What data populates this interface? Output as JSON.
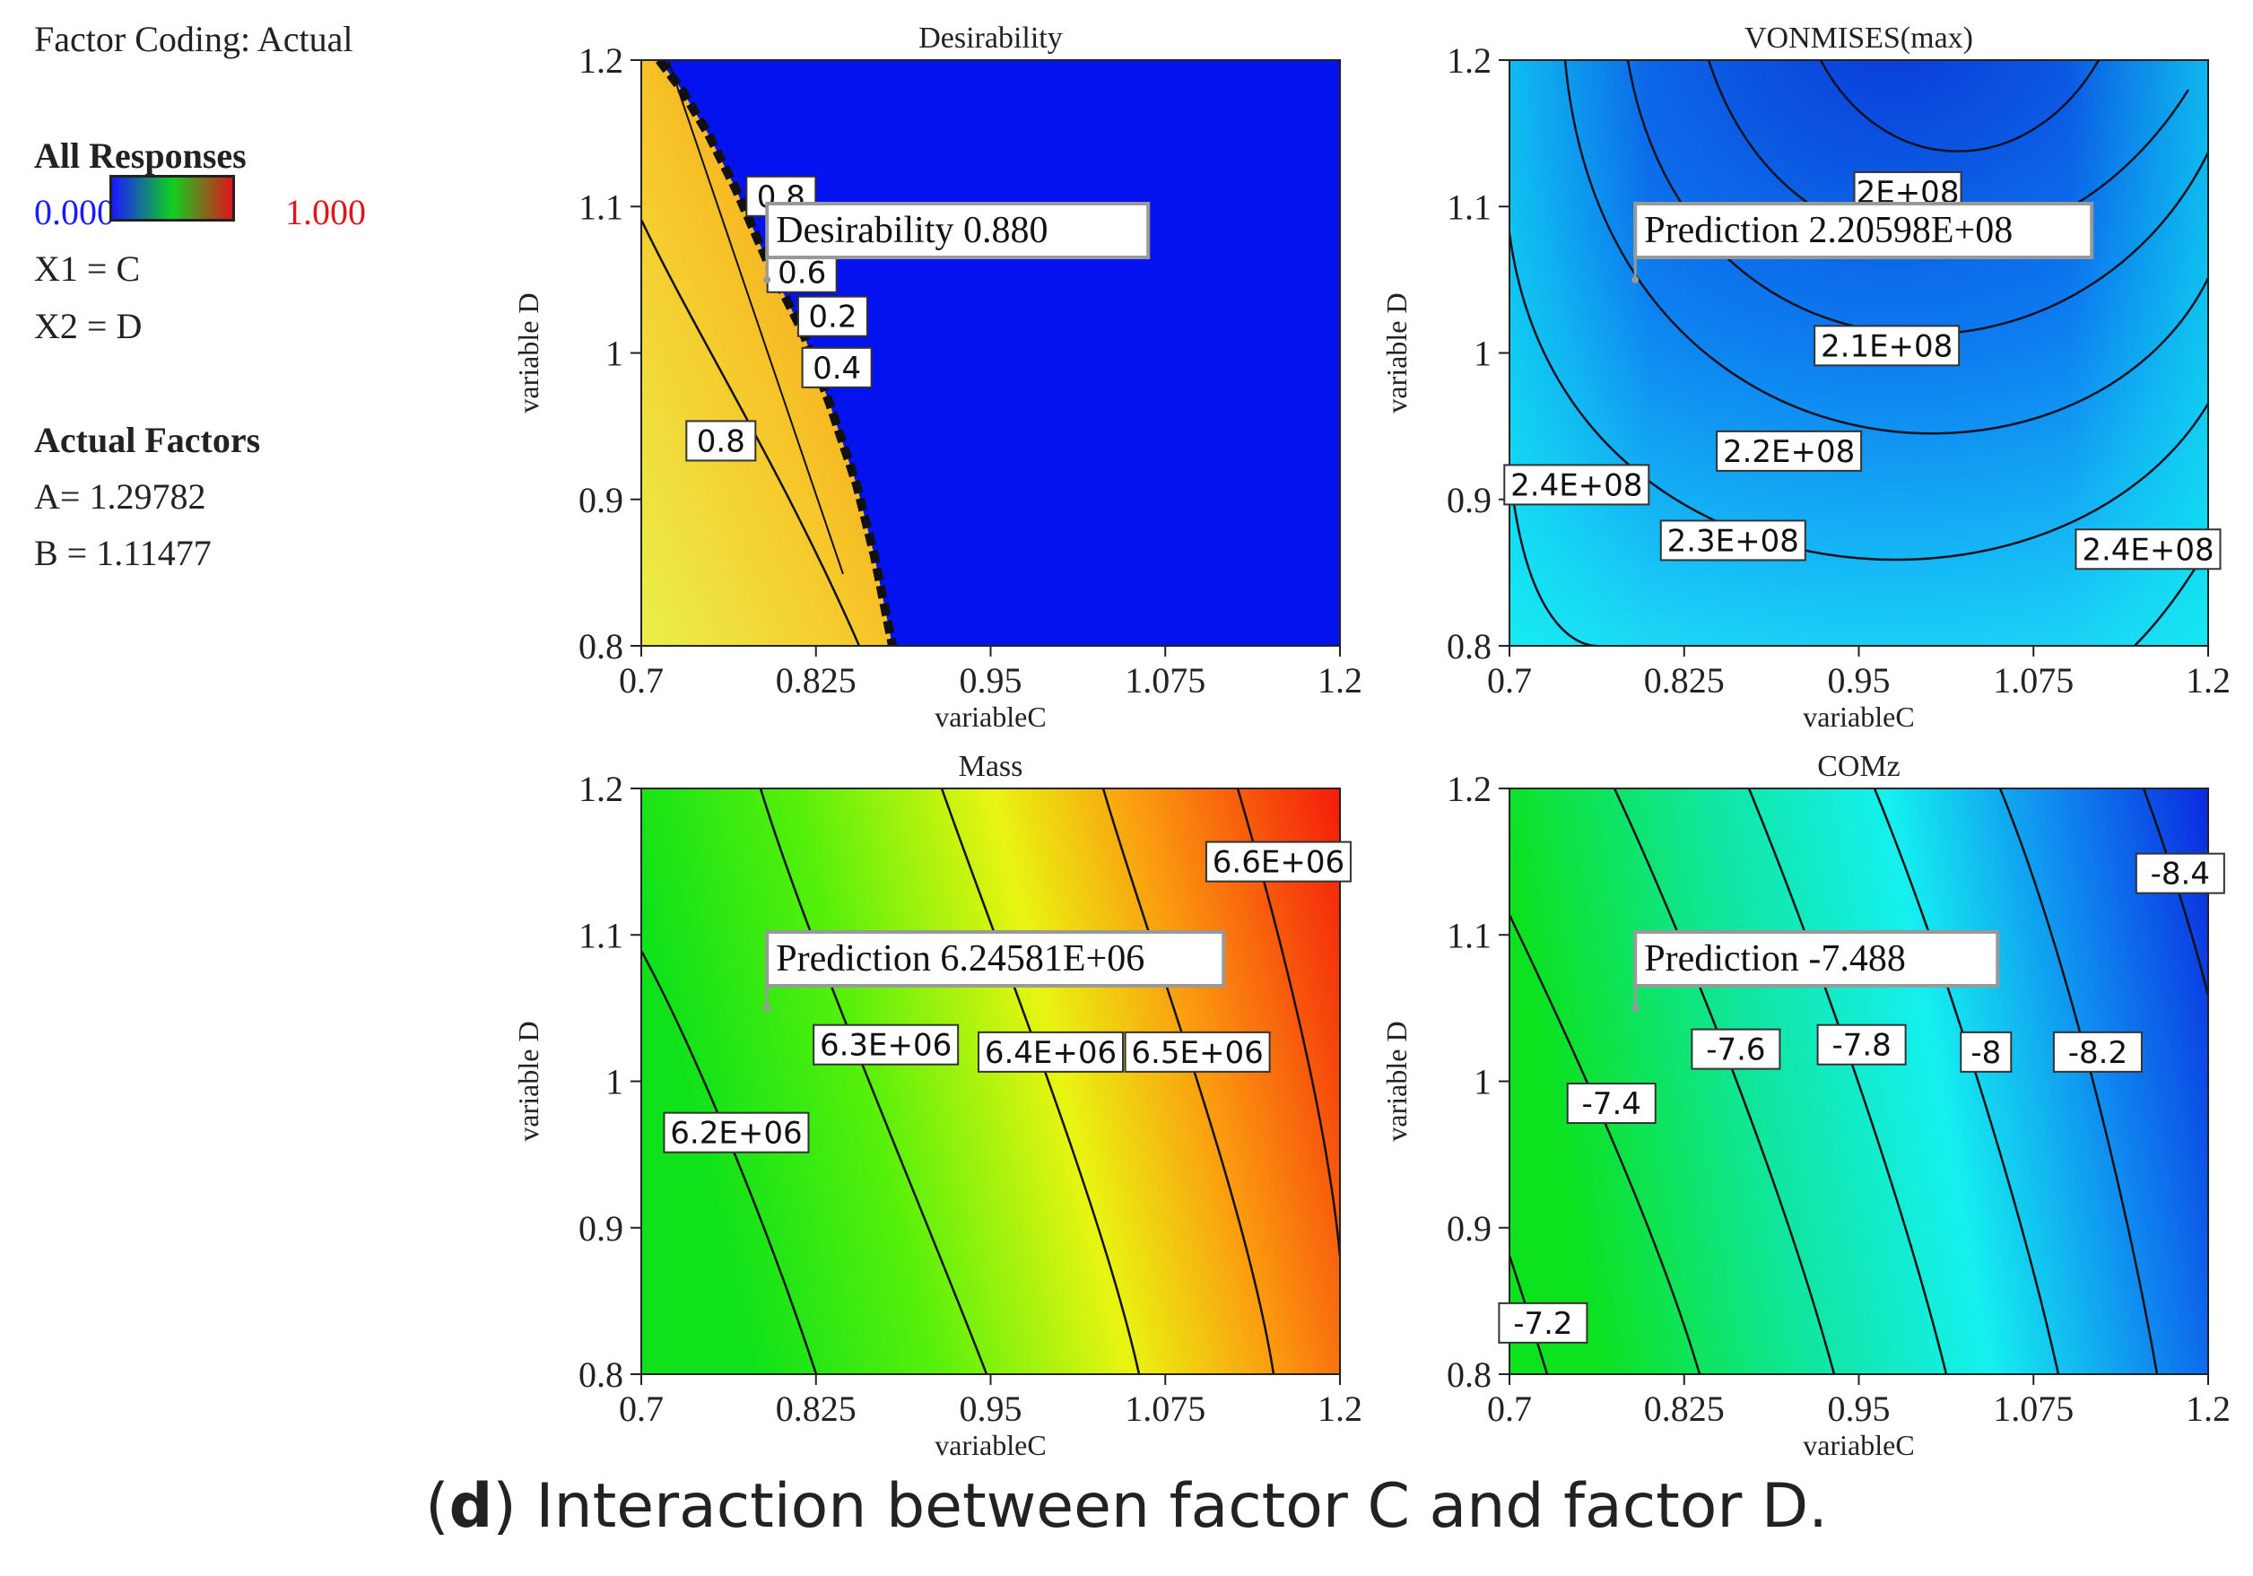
{
  "legend": {
    "factor_coding": "Factor Coding: Actual",
    "all_responses": "All Responses",
    "min_value": "0.000",
    "max_value": "1.000",
    "min_color": "#1a1aff",
    "max_color": "#e0141a",
    "x1": "X1 = C",
    "x2": "X2 = D",
    "actual_factors": "Actual Factors",
    "factor_a": "A= 1.29782",
    "factor_b": "B = 1.11477"
  },
  "caption": {
    "letter": "d",
    "open": "(",
    "text": ") Interaction between factor C and factor D."
  },
  "chart_data": [
    {
      "type": "contour",
      "title": "Desirability",
      "xlabel": "variableC",
      "ylabel": "variable D",
      "xlim": [
        0.7,
        1.2
      ],
      "ylim": [
        0.8,
        1.2
      ],
      "x_ticks": [
        "0.7",
        "0.825",
        "0.95",
        "1.075",
        "1.2"
      ],
      "y_ticks": [
        "0.8",
        "0.9",
        "1",
        "1.1",
        "1.2"
      ],
      "contour_labels": [
        {
          "text": "0.8",
          "x": 0.8,
          "y": 1.107
        },
        {
          "text": "0.6",
          "x": 0.815,
          "y": 1.055
        },
        {
          "text": "0.2",
          "x": 0.837,
          "y": 1.025
        },
        {
          "text": "0.4",
          "x": 0.84,
          "y": 0.99
        },
        {
          "text": "0.8",
          "x": 0.757,
          "y": 0.94
        }
      ],
      "prediction": {
        "label": "Desirability",
        "value": "0.880",
        "x": 0.79,
        "y": 1.05
      }
    },
    {
      "type": "contour",
      "title": "VONMISES(max)",
      "xlabel": "variableC",
      "ylabel": "variable D",
      "xlim": [
        0.7,
        1.2
      ],
      "ylim": [
        0.8,
        1.2
      ],
      "x_ticks": [
        "0.7",
        "0.825",
        "0.95",
        "1.075",
        "1.2"
      ],
      "y_ticks": [
        "0.8",
        "0.9",
        "1",
        "1.1",
        "1.2"
      ],
      "contour_labels": [
        {
          "text": "2E+08",
          "x": 0.985,
          "y": 1.11
        },
        {
          "text": "2.1E+08",
          "x": 0.97,
          "y": 1.005
        },
        {
          "text": "2.2E+08",
          "x": 0.9,
          "y": 0.933
        },
        {
          "text": "2.4E+08",
          "x": 0.748,
          "y": 0.91
        },
        {
          "text": "2.3E+08",
          "x": 0.86,
          "y": 0.872
        },
        {
          "text": "2.4E+08",
          "x": 1.157,
          "y": 0.866
        }
      ],
      "prediction": {
        "label": "Prediction",
        "value": "2.20598E+08",
        "x": 0.79,
        "y": 1.05
      }
    },
    {
      "type": "contour",
      "title": "Mass",
      "xlabel": "variableC",
      "ylabel": "variable D",
      "xlim": [
        0.7,
        1.2
      ],
      "ylim": [
        0.8,
        1.2
      ],
      "x_ticks": [
        "0.7",
        "0.825",
        "0.95",
        "1.075",
        "1.2"
      ],
      "y_ticks": [
        "0.8",
        "0.9",
        "1",
        "1.1",
        "1.2"
      ],
      "contour_labels": [
        {
          "text": "6.2E+06",
          "x": 0.768,
          "y": 0.965
        },
        {
          "text": "6.3E+06",
          "x": 0.875,
          "y": 1.025
        },
        {
          "text": "6.4E+06",
          "x": 0.993,
          "y": 1.02
        },
        {
          "text": "6.5E+06",
          "x": 1.098,
          "y": 1.02
        },
        {
          "text": "6.6E+06",
          "x": 1.156,
          "y": 1.15
        }
      ],
      "prediction": {
        "label": "Prediction",
        "value": "6.24581E+06",
        "x": 0.79,
        "y": 1.05
      }
    },
    {
      "type": "contour",
      "title": "COMz",
      "xlabel": "variableC",
      "ylabel": "variable D",
      "xlim": [
        0.7,
        1.2
      ],
      "ylim": [
        0.8,
        1.2
      ],
      "x_ticks": [
        "0.7",
        "0.825",
        "0.95",
        "1.075",
        "1.2"
      ],
      "y_ticks": [
        "0.8",
        "0.9",
        "1",
        "1.1",
        "1.2"
      ],
      "contour_labels": [
        {
          "text": "-7.4",
          "x": 0.773,
          "y": 0.985
        },
        {
          "text": "-7.6",
          "x": 0.862,
          "y": 1.022
        },
        {
          "text": "-7.8",
          "x": 0.952,
          "y": 1.025
        },
        {
          "text": "-8",
          "x": 1.041,
          "y": 1.02
        },
        {
          "text": "-8.2",
          "x": 1.121,
          "y": 1.02
        },
        {
          "text": "-8.4",
          "x": 1.18,
          "y": 1.142
        },
        {
          "text": "-7.2",
          "x": 0.724,
          "y": 0.835
        }
      ],
      "prediction": {
        "label": "Prediction",
        "value": "-7.488",
        "x": 0.79,
        "y": 1.05
      }
    }
  ]
}
